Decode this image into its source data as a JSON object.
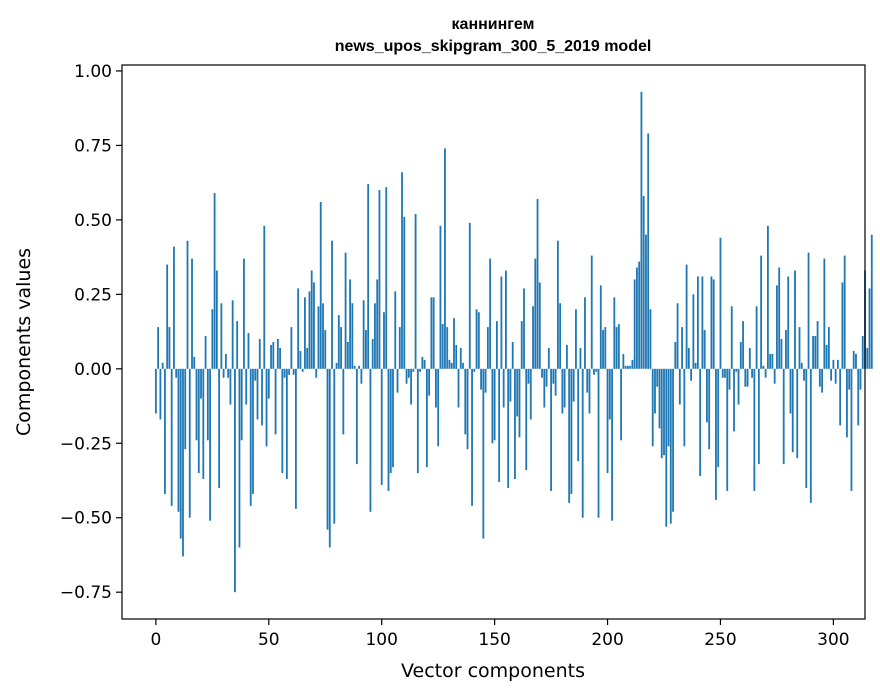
{
  "chart_data": {
    "type": "bar",
    "title_line1": "каннингем",
    "title_line2": "news_upos_skipgram_300_5_2019 model",
    "xlabel": "Vector components",
    "ylabel": "Components values",
    "xlim": [
      -15,
      314
    ],
    "ylim": [
      -0.84,
      1.02
    ],
    "xticks": [
      0,
      50,
      100,
      150,
      200,
      250,
      300
    ],
    "xtick_labels": [
      "0",
      "50",
      "100",
      "150",
      "200",
      "250",
      "300"
    ],
    "yticks": [
      -0.75,
      -0.5,
      -0.25,
      0.0,
      0.25,
      0.5,
      0.75,
      1.0
    ],
    "ytick_labels": [
      "−0.75",
      "−0.50",
      "−0.25",
      "0.00",
      "0.25",
      "0.50",
      "0.75",
      "1.00"
    ],
    "bar_color": "#1f77b4",
    "grid": false,
    "values": [
      -0.15,
      0.14,
      -0.17,
      0.02,
      -0.42,
      0.35,
      0.14,
      -0.46,
      0.41,
      -0.03,
      -0.48,
      -0.57,
      -0.63,
      -0.27,
      0.43,
      -0.5,
      0.37,
      0.04,
      -0.24,
      -0.35,
      -0.1,
      -0.37,
      0.11,
      -0.24,
      -0.51,
      0.2,
      0.59,
      0.33,
      -0.4,
      0.22,
      -0.03,
      0.05,
      -0.03,
      -0.12,
      0.23,
      -0.75,
      0.16,
      -0.6,
      -0.24,
      0.37,
      -0.12,
      0.12,
      -0.46,
      -0.42,
      -0.04,
      -0.17,
      0.1,
      -0.19,
      0.48,
      -0.26,
      -0.1,
      0.08,
      0.09,
      -0.22,
      0.1,
      0.07,
      -0.35,
      -0.03,
      -0.37,
      -0.02,
      0.14,
      -0.02,
      -0.47,
      0.27,
      0.06,
      -0.01,
      0.24,
      0.07,
      0.26,
      0.33,
      0.29,
      -0.03,
      0.21,
      0.56,
      0.22,
      0.13,
      -0.54,
      -0.6,
      0.43,
      -0.52,
      0.02,
      0.18,
      0.14,
      -0.22,
      0.39,
      0.09,
      0.3,
      0.22,
      0.01,
      -0.32,
      0.01,
      -0.05,
      0.23,
      0.13,
      0.62,
      -0.48,
      0.1,
      0.22,
      0.3,
      0.6,
      -0.39,
      0.19,
      0.61,
      -0.41,
      -0.35,
      -0.33,
      0.26,
      -0.08,
      0.14,
      0.66,
      0.51,
      -0.05,
      -0.03,
      -0.12,
      -0.01,
      0.52,
      -0.35,
      -0.01,
      0.04,
      0.03,
      -0.33,
      -0.09,
      0.24,
      0.24,
      -0.13,
      -0.26,
      0.48,
      0.15,
      0.74,
      0.14,
      0.03,
      0.02,
      0.17,
      0.08,
      -0.13,
      0.07,
      0.02,
      -0.22,
      -0.27,
      0.49,
      -0.46,
      -0.01,
      0.2,
      0.19,
      -0.07,
      -0.57,
      -0.08,
      0.14,
      0.37,
      -0.25,
      -0.24,
      0.16,
      -0.38,
      0.31,
      -0.13,
      0.33,
      -0.4,
      -0.11,
      0.09,
      -0.37,
      -0.16,
      -0.23,
      0.16,
      0.27,
      -0.34,
      -0.05,
      -0.17,
      0.21,
      0.37,
      0.57,
      0.29,
      -0.03,
      -0.13,
      -0.06,
      0.07,
      -0.41,
      -0.05,
      -0.09,
      0.43,
      0.22,
      -0.15,
      -0.13,
      0.08,
      -0.45,
      -0.42,
      -0.11,
      0.2,
      -0.31,
      0.07,
      -0.5,
      0.24,
      -0.08,
      -0.15,
      0.38,
      -0.02,
      -0.01,
      -0.5,
      0.28,
      0.13,
      0.14,
      -0.35,
      -0.17,
      -0.51,
      0.24,
      0.14,
      0.15,
      -0.24,
      0.05,
      0.01,
      0.01,
      0.01,
      0.03,
      0.3,
      0.34,
      0.36,
      0.93,
      0.58,
      0.45,
      0.79,
      0.2,
      -0.26,
      -0.15,
      -0.06,
      -0.2,
      -0.3,
      -0.29,
      -0.53,
      -0.26,
      -0.52,
      -0.48,
      0.09,
      0.22,
      -0.12,
      0.14,
      -0.26,
      0.35,
      0.07,
      -0.04,
      0.25,
      0.02,
      0.31,
      -0.36,
      0.31,
      0.13,
      -0.18,
      -0.27,
      0.31,
      0.3,
      -0.44,
      -0.33,
      0.44,
      -0.03,
      -0.03,
      -0.41,
      -0.07,
      0.21,
      -0.21,
      -0.01,
      -0.12,
      0.09,
      0.16,
      -0.06,
      -0.06,
      0.07,
      -0.03,
      -0.41,
      0.21,
      -0.32,
      0.38,
      0.01,
      -0.03,
      0.48,
      0.05,
      0.05,
      -0.05,
      0.28,
      0.34,
      0.1,
      -0.32,
      0.13,
      0.31,
      -0.15,
      -0.28,
      0.33,
      -0.3,
      0.14,
      0.02,
      -0.04,
      -0.4,
      0.39,
      -0.45,
      0.11,
      0.11,
      0.16,
      -0.06,
      -0.08,
      0.37,
      0.08,
      0.14,
      -0.04,
      0.03,
      -0.05,
      0.03,
      -0.19,
      0.29,
      0.38,
      -0.23,
      -0.07,
      -0.41,
      0.06,
      0.05,
      -0.19,
      -0.07,
      0.11,
      0.33,
      0.07,
      0.27,
      0.45
    ]
  }
}
